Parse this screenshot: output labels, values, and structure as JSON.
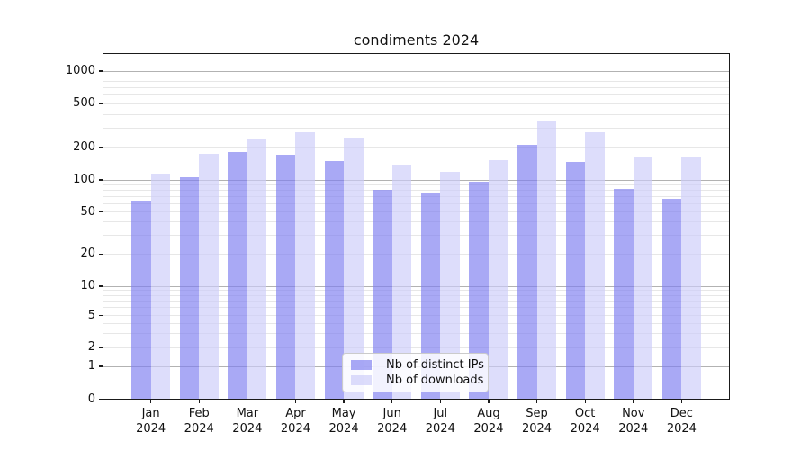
{
  "title": "condiments 2024",
  "legend": {
    "items": [
      {
        "label": "Nb of distinct IPs",
        "key": "distinct_ips"
      },
      {
        "label": "Nb of downloads",
        "key": "downloads"
      }
    ]
  },
  "colors": {
    "distinct_ips": "rgba(124,124,240,0.66)",
    "downloads": "rgba(203,203,249,0.66)",
    "major_grid": "#b2b2b2",
    "minor_grid": "#e7e7e7"
  },
  "chart_data": {
    "type": "bar",
    "title": "condiments 2024",
    "categories": [
      "Jan 2024",
      "Feb 2024",
      "Mar 2024",
      "Apr 2024",
      "May 2024",
      "Jun 2024",
      "Jul 2024",
      "Aug 2024",
      "Sep 2024",
      "Oct 2024",
      "Nov 2024",
      "Dec 2024"
    ],
    "series": [
      {
        "name": "Nb of distinct IPs",
        "values": [
          64,
          105,
          181,
          171,
          149,
          80,
          74,
          97,
          211,
          145,
          83,
          67
        ]
      },
      {
        "name": "Nb of downloads",
        "values": [
          115,
          174,
          240,
          275,
          244,
          138,
          118,
          153,
          353,
          275,
          161,
          161
        ]
      }
    ],
    "xlabel": "",
    "ylabel": "",
    "yscale": "log-like with zero (symlog/asinh style)",
    "yticks": [
      0,
      1,
      2,
      5,
      10,
      20,
      50,
      100,
      200,
      500,
      1000
    ],
    "ylim": [
      0,
      1465
    ],
    "grid": true,
    "legend_position": "lower center (inside axes)"
  }
}
